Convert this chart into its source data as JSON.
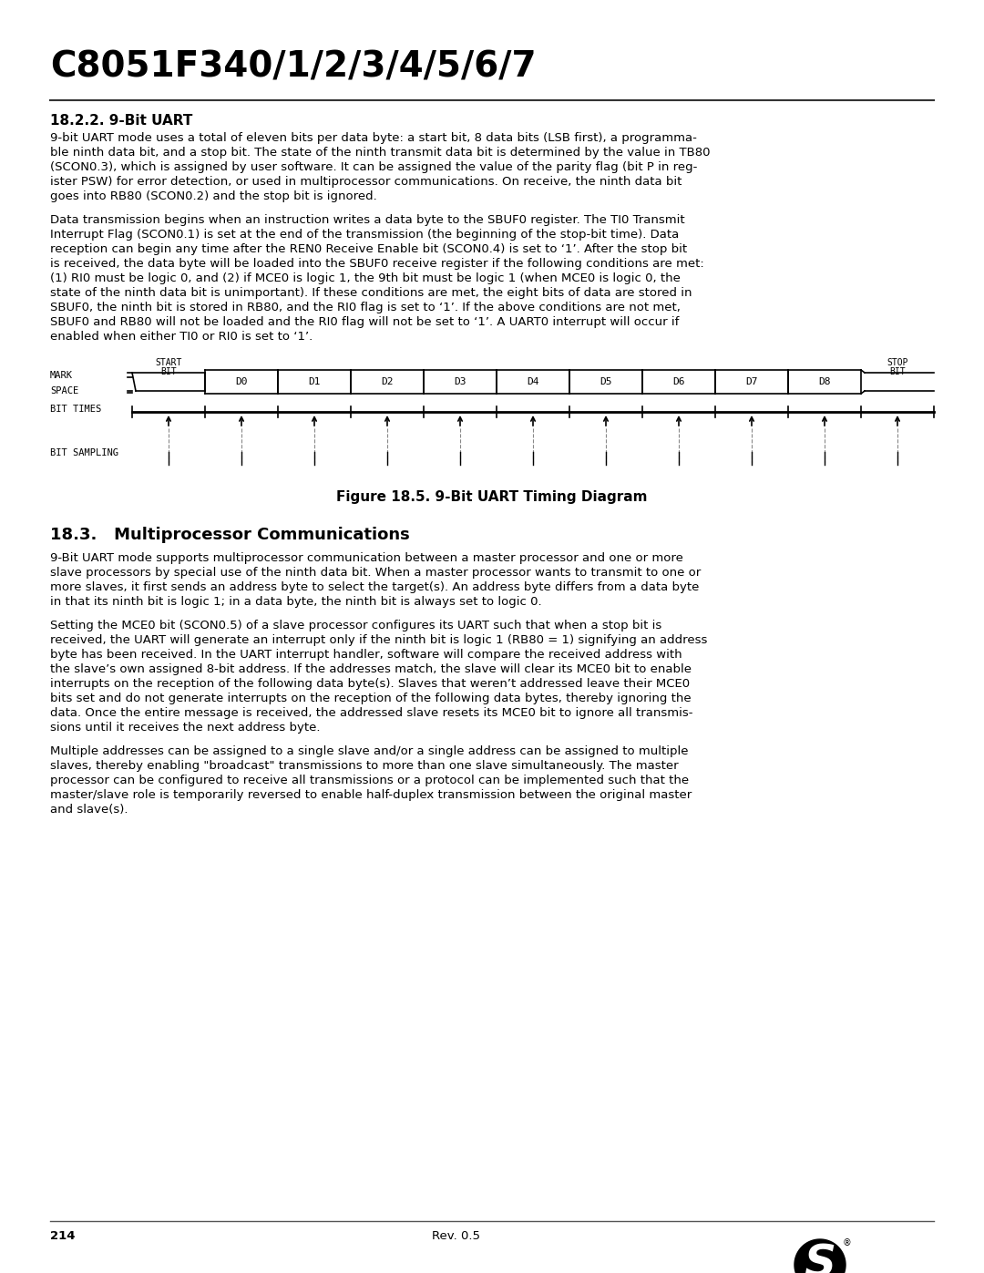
{
  "title": "C8051F340/1/2/3/4/5/6/7",
  "section_title": "18.2.2. 9-Bit UART",
  "section_body1": "9-bit UART mode uses a total of eleven bits per data byte: a start bit, 8 data bits (LSB first), a programma-\nble ninth data bit, and a stop bit. The state of the ninth transmit data bit is determined by the value in TB80\n(SCON0.3), which is assigned by user software. It can be assigned the value of the parity flag (bit P in reg-\nister PSW) for error detection, or used in multiprocessor communications. On receive, the ninth data bit\ngoes into RB80 (SCON0.2) and the stop bit is ignored.",
  "section_body2": "Data transmission begins when an instruction writes a data byte to the SBUF0 register. The TI0 Transmit\nInterrupt Flag (SCON0.1) is set at the end of the transmission (the beginning of the stop-bit time). Data\nreception can begin any time after the REN0 Receive Enable bit (SCON0.4) is set to ‘1’. After the stop bit\nis received, the data byte will be loaded into the SBUF0 receive register if the following conditions are met:\n(1) RI0 must be logic 0, and (2) if MCE0 is logic 1, the 9th bit must be logic 1 (when MCE0 is logic 0, the\nstate of the ninth data bit is unimportant). If these conditions are met, the eight bits of data are stored in\nSBUF0, the ninth bit is stored in RB80, and the RI0 flag is set to ‘1’. If the above conditions are not met,\nSBUF0 and RB80 will not be loaded and the RI0 flag will not be set to ‘1’. A UART0 interrupt will occur if\nenabled when either TI0 or RI0 is set to ‘1’.",
  "figure_caption": "Figure 18.5. 9-Bit UART Timing Diagram",
  "section2_title": "18.3.   Multiprocessor Communications",
  "section2_body1": "9-Bit UART mode supports multiprocessor communication between a master processor and one or more\nslave processors by special use of the ninth data bit. When a master processor wants to transmit to one or\nmore slaves, it first sends an address byte to select the target(s). An address byte differs from a data byte\nin that its ninth bit is logic 1; in a data byte, the ninth bit is always set to logic 0.",
  "section2_body2": "Setting the MCE0 bit (SCON0.5) of a slave processor configures its UART such that when a stop bit is\nreceived, the UART will generate an interrupt only if the ninth bit is logic 1 (RB80 = 1) signifying an address\nbyte has been received. In the UART interrupt handler, software will compare the received address with\nthe slave’s own assigned 8-bit address. If the addresses match, the slave will clear its MCE0 bit to enable\ninterrupts on the reception of the following data byte(s). Slaves that weren’t addressed leave their MCE0\nbits set and do not generate interrupts on the reception of the following data bytes, thereby ignoring the\ndata. Once the entire message is received, the addressed slave resets its MCE0 bit to ignore all transmis-\nsions until it receives the next address byte.",
  "section2_body3": "Multiple addresses can be assigned to a single slave and/or a single address can be assigned to multiple\nslaves, thereby enabling \"broadcast\" transmissions to more than one slave simultaneously. The master\nprocessor can be configured to receive all transmissions or a protocol can be implemented such that the\nmaster/slave role is temporarily reversed to enable half-duplex transmission between the original master\nand slave(s).",
  "footer_page": "214",
  "footer_rev": "Rev. 0.5",
  "bg_color": "#ffffff",
  "text_color": "#000000",
  "title_color": "#000000",
  "line_color": "#000000",
  "diagram_bits": [
    "START\nBIT",
    "D0",
    "D1",
    "D2",
    "D3",
    "D4",
    "D5",
    "D6",
    "D7",
    "D8",
    "STOP\nBIT"
  ]
}
